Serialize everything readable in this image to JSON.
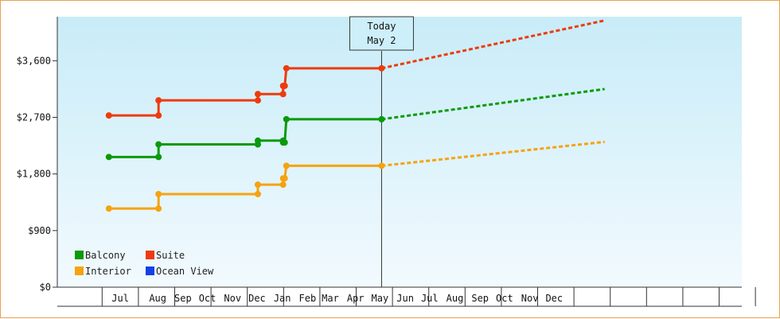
{
  "chart_data": {
    "type": "line",
    "title": "",
    "xlabel": "",
    "ylabel": "",
    "ylim": [
      0,
      4300
    ],
    "y_ticks": [
      {
        "value": 0,
        "label": "$0"
      },
      {
        "value": 900,
        "label": "$900"
      },
      {
        "value": 1800,
        "label": "$1,800"
      },
      {
        "value": 2700,
        "label": "$2,700"
      },
      {
        "value": 3600,
        "label": "$3,600"
      }
    ],
    "x_start": "2024-06-10",
    "x_end": "2025-01-15",
    "month_ticks": [
      {
        "label": "Jul",
        "date": "2024-06-15"
      },
      {
        "label": "Aug",
        "date": "2024-07-31"
      },
      {
        "label": "Sep",
        "date": "2024-08-31"
      },
      {
        "label": "Oct",
        "date": "2024-09-30"
      },
      {
        "label": "Nov",
        "date": "2024-10-31"
      },
      {
        "label": "Dec",
        "date": "2024-11-30"
      },
      {
        "label": "Jan",
        "date": "2024-12-31"
      },
      {
        "label": "Feb",
        "date": "2025-01-31"
      },
      {
        "label": "Mar",
        "date": "2025-02-28"
      },
      {
        "label": "Apr",
        "date": "2025-03-31"
      },
      {
        "label": "May",
        "date": "2025-04-30"
      },
      {
        "label": "Jun",
        "date": "2025-05-31"
      },
      {
        "label": "Jul",
        "date": "2025-06-30"
      },
      {
        "label": "Aug",
        "date": "2025-07-31"
      },
      {
        "label": "Sep",
        "date": "2025-08-31"
      },
      {
        "label": "Oct",
        "date": "2025-09-30"
      },
      {
        "label": "Nov",
        "date": "2025-10-31"
      },
      {
        "label": "Dec",
        "date": "2025-11-30"
      }
    ],
    "today": {
      "date": "2025-05-02",
      "line1": "Today",
      "line2": "May 2"
    },
    "grid": false,
    "legend_position": "bottom-left",
    "series": [
      {
        "name": "Balcony",
        "color": "#0a9a0a",
        "points": [
          [
            "2024-06-01",
            2070
          ],
          [
            "2024-08-01",
            2070
          ],
          [
            "2024-08-01",
            2270
          ],
          [
            "2024-12-01",
            2270
          ],
          [
            "2024-12-01",
            2330
          ],
          [
            "2025-01-01",
            2330
          ],
          [
            "2025-01-01",
            2300
          ],
          [
            "2025-01-03",
            2300
          ],
          [
            "2025-01-05",
            2670
          ],
          [
            "2025-05-02",
            2670
          ]
        ],
        "markers": [
          [
            "2024-06-01",
            2070
          ],
          [
            "2024-08-01",
            2070
          ],
          [
            "2024-08-01",
            2270
          ],
          [
            "2024-12-01",
            2270
          ],
          [
            "2024-12-01",
            2330
          ],
          [
            "2025-01-01",
            2330
          ],
          [
            "2025-01-01",
            2300
          ],
          [
            "2025-01-03",
            2300
          ],
          [
            "2025-01-05",
            2670
          ],
          [
            "2025-05-02",
            2670
          ]
        ],
        "forecast": [
          [
            "2025-05-02",
            2670
          ],
          [
            "2026-01-31",
            3150
          ]
        ]
      },
      {
        "name": "Suite",
        "color": "#ee3a0c",
        "points": [
          [
            "2024-06-01",
            2730
          ],
          [
            "2024-08-01",
            2730
          ],
          [
            "2024-08-01",
            2970
          ],
          [
            "2024-12-01",
            2970
          ],
          [
            "2024-12-01",
            3070
          ],
          [
            "2025-01-01",
            3070
          ],
          [
            "2025-01-01",
            3200
          ],
          [
            "2025-01-03",
            3200
          ],
          [
            "2025-01-05",
            3480
          ],
          [
            "2025-05-02",
            3480
          ]
        ],
        "markers": [
          [
            "2024-06-01",
            2730
          ],
          [
            "2024-08-01",
            2730
          ],
          [
            "2024-08-01",
            2970
          ],
          [
            "2024-12-01",
            2970
          ],
          [
            "2024-12-01",
            3070
          ],
          [
            "2025-01-01",
            3070
          ],
          [
            "2025-01-01",
            3200
          ],
          [
            "2025-01-03",
            3200
          ],
          [
            "2025-01-05",
            3480
          ],
          [
            "2025-05-02",
            3480
          ]
        ],
        "forecast": [
          [
            "2025-05-02",
            3480
          ],
          [
            "2026-01-31",
            4240
          ]
        ]
      },
      {
        "name": "Interior",
        "color": "#f5a30f",
        "points": [
          [
            "2024-06-01",
            1250
          ],
          [
            "2024-08-01",
            1250
          ],
          [
            "2024-08-01",
            1480
          ],
          [
            "2024-12-01",
            1480
          ],
          [
            "2024-12-01",
            1630
          ],
          [
            "2025-01-01",
            1630
          ],
          [
            "2025-01-01",
            1730
          ],
          [
            "2025-01-03",
            1730
          ],
          [
            "2025-01-05",
            1930
          ],
          [
            "2025-05-02",
            1930
          ]
        ],
        "markers": [
          [
            "2024-06-01",
            1250
          ],
          [
            "2024-08-01",
            1250
          ],
          [
            "2024-08-01",
            1480
          ],
          [
            "2024-12-01",
            1480
          ],
          [
            "2024-12-01",
            1630
          ],
          [
            "2025-01-01",
            1630
          ],
          [
            "2025-01-01",
            1730
          ],
          [
            "2025-01-03",
            1730
          ],
          [
            "2025-01-05",
            1930
          ],
          [
            "2025-05-02",
            1930
          ]
        ],
        "forecast": [
          [
            "2025-05-02",
            1930
          ],
          [
            "2026-01-31",
            2310
          ]
        ]
      },
      {
        "name": "Ocean View",
        "color": "#1040e8",
        "points": [],
        "markers": [],
        "forecast": []
      }
    ]
  }
}
